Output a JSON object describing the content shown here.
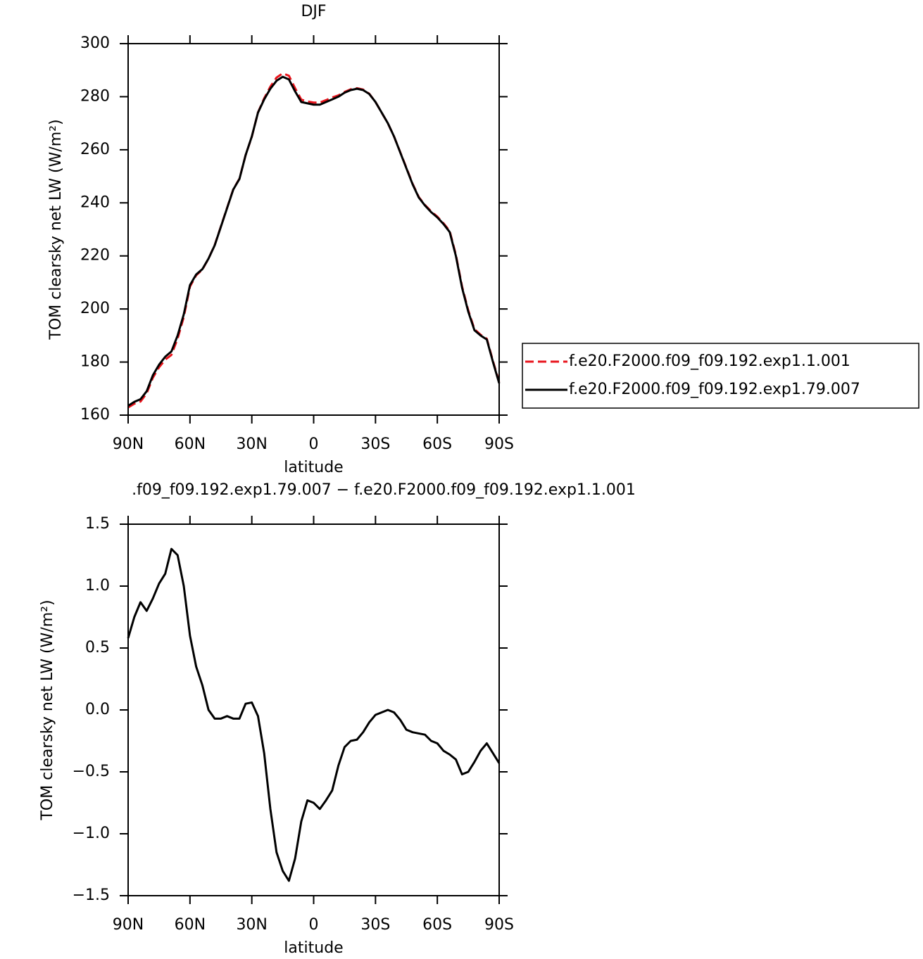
{
  "chart_data": [
    {
      "type": "line",
      "title": "DJF",
      "x_label": "latitude",
      "y_label": "TOM clearsky net LW (W/m²)",
      "x": [
        90,
        87,
        84,
        81,
        78,
        75,
        72,
        69,
        66,
        63,
        60,
        57,
        54,
        51,
        48,
        45,
        42,
        39,
        36,
        33,
        30,
        27,
        24,
        21,
        18,
        15,
        12,
        9,
        6,
        3,
        0,
        -3,
        -6,
        -9,
        -12,
        -15,
        -18,
        -21,
        -24,
        -27,
        -30,
        -33,
        -36,
        -39,
        -42,
        -45,
        -48,
        -51,
        -54,
        -57,
        -60,
        -63,
        -66,
        -69,
        -72,
        -75,
        -78,
        -81,
        -84,
        -87,
        -90
      ],
      "series": [
        {
          "name": "f.e20.F2000.f09_f09.192.exp1.1.001",
          "color": "#e8141c",
          "dash": true,
          "values": [
            162.9,
            164.3,
            165.1,
            168.2,
            174.1,
            178.0,
            180.9,
            182.7,
            188.8,
            197.0,
            208.4,
            212.7,
            214.8,
            219.0,
            224.1,
            231.1,
            238.1,
            245.1,
            249.1,
            258.0,
            264.9,
            274.1,
            279.4,
            283.8,
            287.2,
            288.8,
            287.9,
            283.2,
            278.9,
            278.2,
            277.8,
            277.8,
            278.7,
            279.7,
            280.5,
            281.8,
            282.8,
            283.2,
            282.7,
            281.1,
            278.0,
            274.0,
            270.0,
            265.0,
            259.1,
            253.2,
            247.2,
            242.2,
            239.2,
            236.8,
            234.8,
            232.3,
            229.4,
            220.4,
            208.5,
            199.5,
            192.4,
            190.3,
            188.8,
            180.4,
            172.4
          ]
        },
        {
          "name": "f.e20.F2000.f09_f09.192.exp1.79.007",
          "color": "#000000",
          "dash": false,
          "values": [
            163.5,
            165,
            166,
            169,
            175,
            179,
            182,
            184,
            190,
            198,
            209,
            213,
            215,
            219,
            224,
            231,
            238,
            245,
            249,
            258,
            265,
            274,
            279,
            283,
            286,
            287.5,
            286.5,
            282,
            278,
            277.5,
            277,
            277,
            278,
            279,
            280,
            281.5,
            282.5,
            283,
            282.5,
            281,
            278,
            274,
            270,
            265,
            259,
            253,
            247,
            242,
            239,
            236.5,
            234.5,
            232,
            229,
            220,
            208,
            199,
            192,
            190,
            188.5,
            180,
            172
          ]
        }
      ],
      "xlim": [
        90,
        -90
      ],
      "xticks": [
        {
          "value": 90,
          "label": "90N"
        },
        {
          "value": 60,
          "label": "60N"
        },
        {
          "value": 30,
          "label": "30N"
        },
        0,
        {
          "value": -30,
          "label": "30S"
        },
        {
          "value": -60,
          "label": "60S"
        },
        {
          "value": -90,
          "label": "90S"
        }
      ],
      "ylim": [
        160,
        300
      ],
      "yticks": [
        160,
        180,
        200,
        220,
        240,
        260,
        280,
        300
      ],
      "legend": "right"
    },
    {
      "type": "line",
      "title": ".f09_f09.192.exp1.79.007 − f.e20.F2000.f09_f09.192.exp1.1.001",
      "x_label": "latitude",
      "y_label": "TOM clearsky net LW (W/m²)",
      "x": [
        90,
        87,
        84,
        81,
        78,
        75,
        72,
        69,
        66,
        63,
        60,
        57,
        54,
        51,
        48,
        45,
        42,
        39,
        36,
        33,
        30,
        27,
        24,
        21,
        18,
        15,
        12,
        9,
        6,
        3,
        0,
        -3,
        -6,
        -9,
        -12,
        -15,
        -18,
        -21,
        -24,
        -27,
        -30,
        -33,
        -36,
        -39,
        -42,
        -45,
        -48,
        -51,
        -54,
        -57,
        -60,
        -63,
        -66,
        -69,
        -72,
        -75,
        -78,
        -81,
        -84,
        -87,
        -90
      ],
      "series": [
        {
          "color": "#000000",
          "dash": false,
          "values": [
            0.58,
            0.75,
            0.87,
            0.8,
            0.9,
            1.02,
            1.1,
            1.3,
            1.25,
            1.0,
            0.6,
            0.35,
            0.2,
            0.0,
            -0.07,
            -0.07,
            -0.05,
            -0.07,
            -0.07,
            0.05,
            0.06,
            -0.05,
            -0.35,
            -0.8,
            -1.15,
            -1.3,
            -1.38,
            -1.2,
            -0.9,
            -0.73,
            -0.75,
            -0.8,
            -0.73,
            -0.65,
            -0.45,
            -0.3,
            -0.25,
            -0.24,
            -0.18,
            -0.1,
            -0.04,
            -0.02,
            0.0,
            -0.02,
            -0.08,
            -0.16,
            -0.18,
            -0.19,
            -0.2,
            -0.25,
            -0.27,
            -0.33,
            -0.36,
            -0.4,
            -0.52,
            -0.5,
            -0.42,
            -0.33,
            -0.27,
            -0.35,
            -0.43
          ]
        }
      ],
      "xlim": [
        90,
        -90
      ],
      "xticks": [
        {
          "value": 90,
          "label": "90N"
        },
        {
          "value": 60,
          "label": "60N"
        },
        {
          "value": 30,
          "label": "30N"
        },
        0,
        {
          "value": -30,
          "label": "30S"
        },
        {
          "value": -60,
          "label": "60S"
        },
        {
          "value": -90,
          "label": "90S"
        }
      ],
      "ylim": [
        -1.5,
        1.5
      ],
      "yticks": [
        {
          "value": -1.5,
          "label": "−1.5"
        },
        {
          "value": -1,
          "label": "−1.0"
        },
        {
          "value": -0.5,
          "label": "−0.5"
        },
        {
          "value": 0,
          "label": "0.0"
        },
        0.5,
        {
          "value": 1,
          "label": "1.0"
        },
        1.5
      ]
    }
  ]
}
